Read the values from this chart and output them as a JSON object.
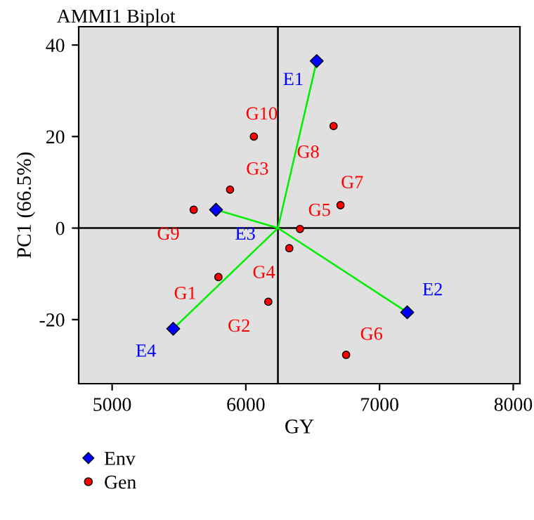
{
  "chart_data": {
    "type": "scatter",
    "title": "AMMI1 Biplot",
    "xlabel": "GY",
    "ylabel": "PC1 (66.5%)",
    "xlim": [
      4750,
      8050
    ],
    "ylim": [
      -34,
      44
    ],
    "xticks": [
      5000,
      6000,
      7000,
      8000
    ],
    "yticks": [
      -20,
      0,
      20,
      40
    ],
    "grid": false,
    "legend": "bottom left",
    "ref_lines": [
      {
        "axis": "x",
        "value": 6240,
        "color": "#000000"
      },
      {
        "axis": "y",
        "value": 0,
        "color": "#000000"
      }
    ],
    "series": [
      {
        "type": "line",
        "color": "#00ee00",
        "x": [
          6530,
          6240,
          7207,
          null,
          5777,
          6240,
          5457
        ],
        "values": [
          36.5,
          0,
          -18.4,
          null,
          4.0,
          0,
          -22.0
        ],
        "marker": "none"
      },
      {
        "name": "Env",
        "color": "#0000ff",
        "marker": "diamond",
        "x": [
          6530,
          7207,
          5777,
          5457
        ],
        "values": [
          36.5,
          -18.4,
          4.0,
          -22.0
        ],
        "value_labels": [
          "E1",
          "E2",
          "E3",
          "E4"
        ]
      },
      {
        "name": "Gen",
        "color": "#ff0000",
        "marker": "circle",
        "x": [
          5795,
          6168,
          5882,
          6325,
          6405,
          6750,
          6708,
          6656,
          5610,
          6060
        ],
        "values": [
          -10.7,
          -16.1,
          8.4,
          -4.4,
          -0.2,
          -27.7,
          5.0,
          22.3,
          4.0,
          20.0
        ],
        "value_labels": [
          "G1",
          "G2",
          "G3",
          "G4",
          "G5",
          "G6",
          "G7",
          "G8",
          "G9",
          "G10"
        ]
      }
    ]
  }
}
